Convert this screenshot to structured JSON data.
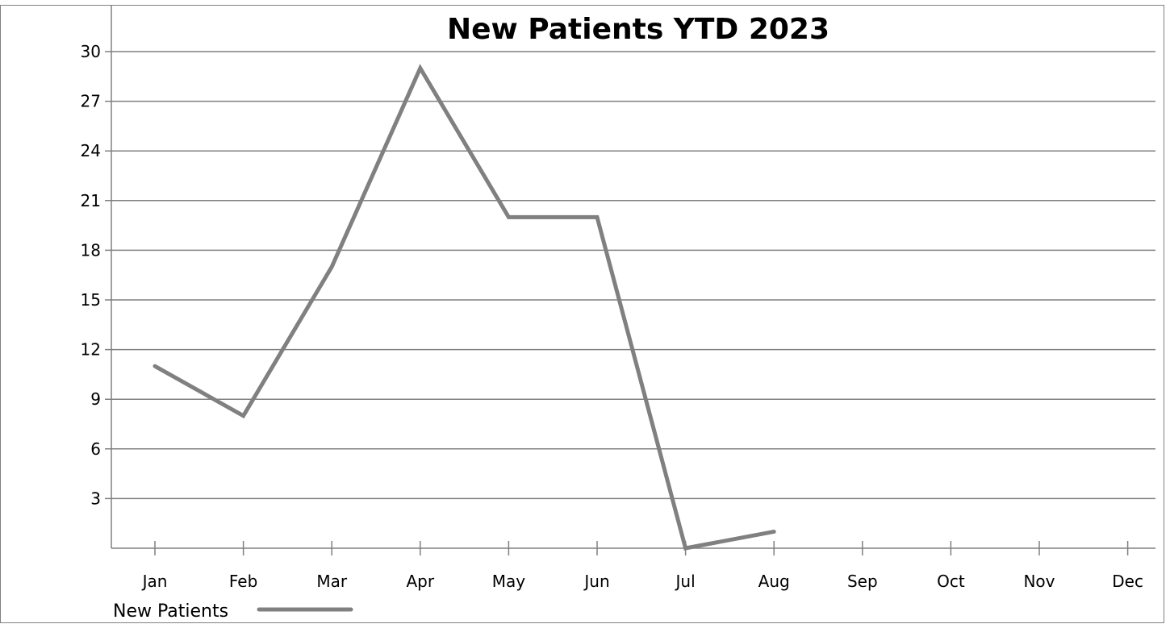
{
  "chart_data": {
    "type": "line",
    "title": "New Patients YTD 2023",
    "xlabel": "",
    "ylabel": "",
    "categories": [
      "Jan",
      "Feb",
      "Mar",
      "Apr",
      "May",
      "Jun",
      "Jul",
      "Aug",
      "Sep",
      "Oct",
      "Nov",
      "Dec"
    ],
    "series": [
      {
        "name": "New Patients",
        "values": [
          11,
          8,
          17,
          29,
          20,
          20,
          0,
          1,
          null,
          null,
          null,
          null
        ],
        "color": "#808080"
      }
    ],
    "ylim": [
      0,
      30
    ],
    "yticks": [
      3,
      6,
      9,
      12,
      15,
      18,
      21,
      24,
      27,
      30
    ],
    "grid": true,
    "legend": "bottom-left"
  },
  "colors": {
    "line": "#808080",
    "grid": "#808080",
    "axis": "#808080"
  }
}
